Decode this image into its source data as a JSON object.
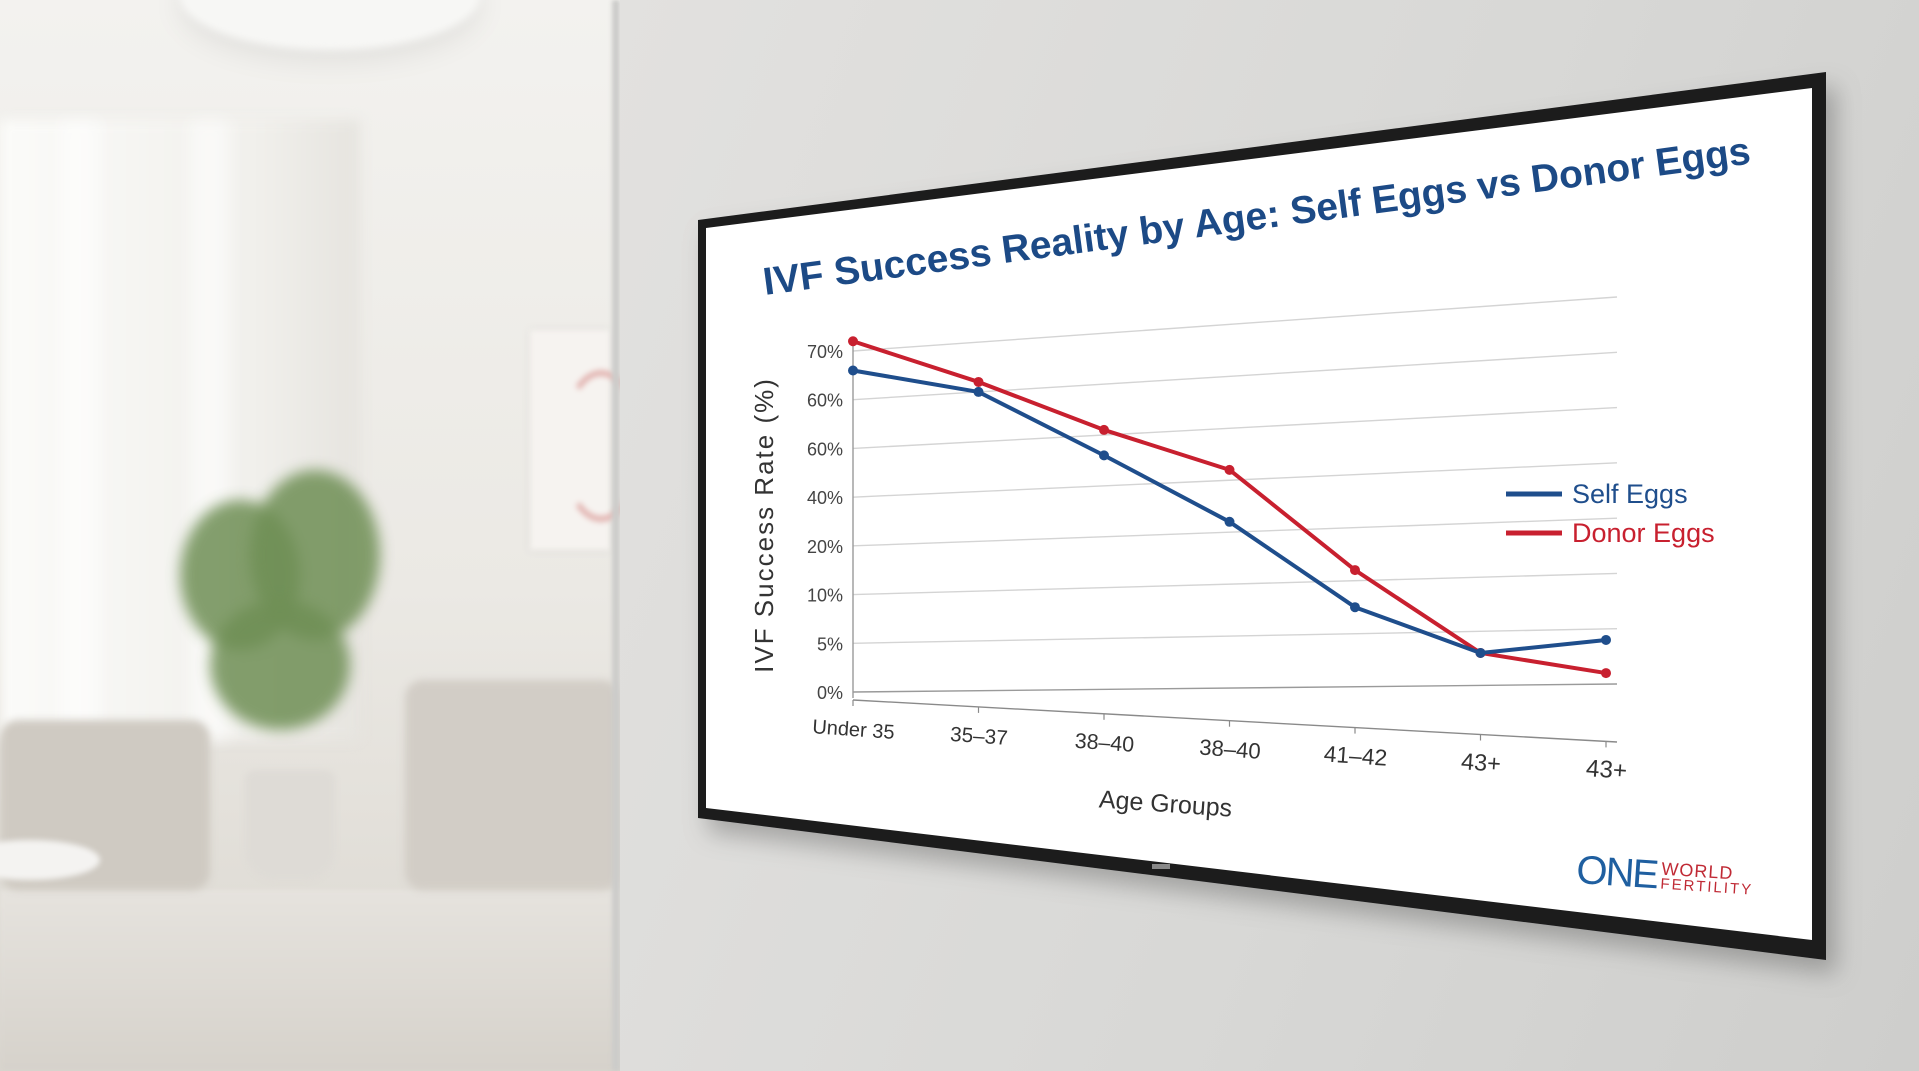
{
  "chart_data": {
    "type": "line",
    "title": "IVF Success Reality by Age: Self Eggs vs Donor Eggs",
    "xlabel": "Age Groups",
    "ylabel": "IVF Success Rate (%)",
    "categories": [
      "Under 35",
      "35–37",
      "38–40",
      "38–40",
      "41–42",
      "43+",
      "43+"
    ],
    "yticks": [
      "0%",
      "5%",
      "10%",
      "20%",
      "40%",
      "60%",
      "60%",
      "70%"
    ],
    "series": [
      {
        "name": "Self Eggs",
        "color": "#1f4e8c",
        "values": [
          6.6,
          6.0,
          4.6,
          3.2,
          1.5,
          0.6,
          0.8
        ]
      },
      {
        "name": "Donor Eggs",
        "color": "#c8202f",
        "values": [
          7.2,
          6.2,
          5.1,
          4.2,
          2.2,
          0.6,
          0.2
        ]
      }
    ],
    "value_scale": "tick-index (0 = 0%, 7 = 70%)",
    "grid": true,
    "legend_position": "right"
  },
  "brand": {
    "logo_mark": "ONE",
    "logo_line1": "WORLD",
    "logo_line2": "FERTILITY"
  },
  "colors": {
    "title": "#1c4a86",
    "self_eggs": "#1f4e8c",
    "donor_eggs": "#c8202f"
  }
}
